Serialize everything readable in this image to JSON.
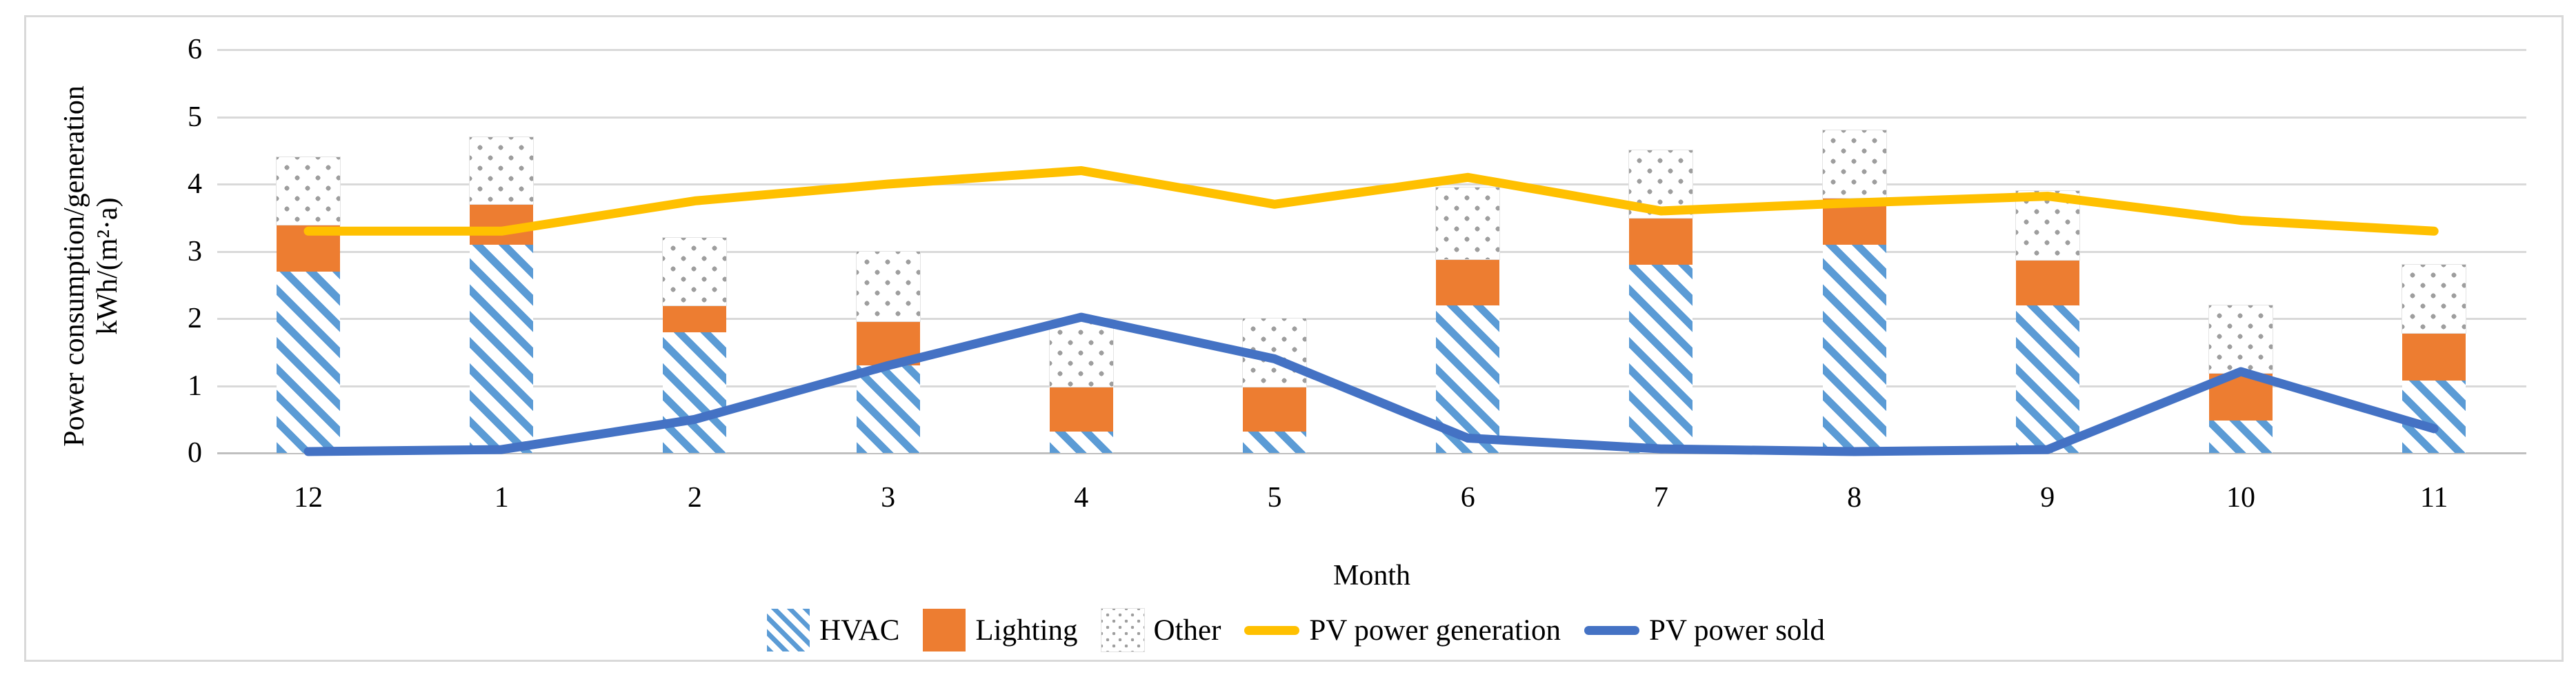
{
  "chart_data": {
    "type": "bar+line combo (stacked bars with two overlay lines)",
    "title": "",
    "xlabel": "Month",
    "ylabel_line1": "Power consumption/generation",
    "ylabel_line2": "kWh/(m²·a)",
    "ylim": [
      0,
      6
    ],
    "yticks": [
      0,
      1,
      2,
      3,
      4,
      5,
      6
    ],
    "grid": true,
    "legend_position": "bottom",
    "categories": [
      "12",
      "1",
      "2",
      "3",
      "4",
      "5",
      "6",
      "7",
      "8",
      "9",
      "10",
      "11"
    ],
    "bar_series": [
      {
        "name": "HVAC",
        "style": "hatch",
        "color": "#5B9BD5",
        "values": [
          2.7,
          3.1,
          1.8,
          1.3,
          0.32,
          0.32,
          2.2,
          2.8,
          3.1,
          2.2,
          0.48,
          1.08
        ]
      },
      {
        "name": "Lighting",
        "style": "solid",
        "color": "#ED7D31",
        "values": [
          0.7,
          0.6,
          0.4,
          0.66,
          0.66,
          0.66,
          0.68,
          0.7,
          0.7,
          0.67,
          0.71,
          0.7
        ]
      },
      {
        "name": "Other",
        "style": "dots",
        "color": "#9e9e9e",
        "values": [
          1.0,
          1.0,
          1.0,
          1.04,
          0.97,
          1.02,
          1.07,
          1.0,
          1.0,
          1.03,
          1.01,
          1.02
        ]
      }
    ],
    "line_series": [
      {
        "name": "PV power generation",
        "color": "#FFC000",
        "values": [
          3.3,
          3.3,
          3.75,
          4.0,
          4.2,
          3.7,
          4.1,
          3.6,
          3.72,
          3.82,
          3.46,
          3.3
        ]
      },
      {
        "name": "PV power sold",
        "color": "#4472C4",
        "values": [
          0.02,
          0.05,
          0.5,
          1.3,
          2.02,
          1.4,
          0.22,
          0.06,
          0.02,
          0.05,
          1.21,
          0.36
        ]
      }
    ],
    "colors": {
      "gridline": "#d9d9d9",
      "axis_line": "#bfbfbf",
      "frame_border": "#d9d9d9",
      "text": "#000000"
    }
  }
}
